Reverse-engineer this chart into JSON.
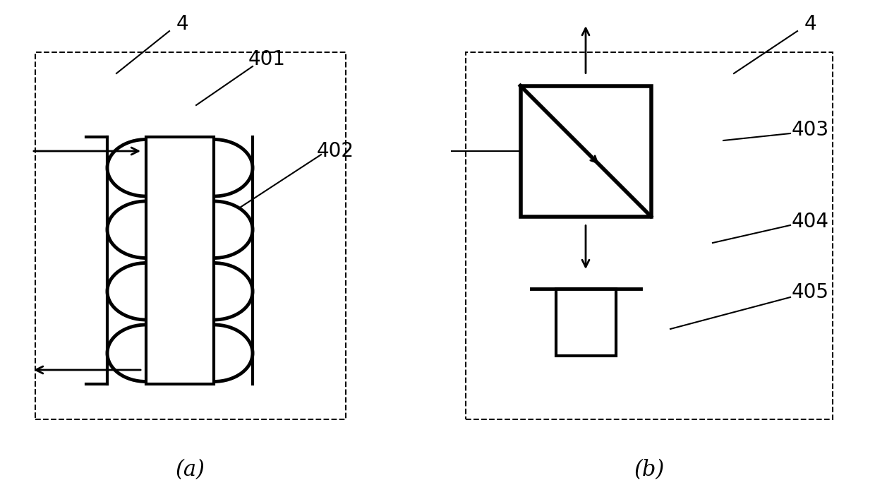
{
  "fig_width": 12.4,
  "fig_height": 7.04,
  "dpi": 100,
  "bg_color": "#ffffff",
  "line_color": "#000000",
  "label_fontsize": 20,
  "sublabel_fontsize": 22
}
